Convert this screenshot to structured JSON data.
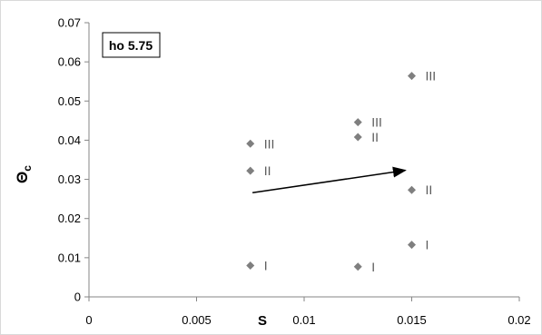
{
  "chart_data": {
    "type": "scatter",
    "title": "",
    "xlabel": "S",
    "ylabel_main": "Θ",
    "ylabel_sub": "c",
    "xlim": [
      0,
      0.02
    ],
    "ylim": [
      0,
      0.07
    ],
    "x_ticks": [
      {
        "value": 0,
        "label": "0"
      },
      {
        "value": 0.005,
        "label": "0.005"
      },
      {
        "value": 0.01,
        "label": "0.01"
      },
      {
        "value": 0.015,
        "label": "0.015"
      },
      {
        "value": 0.02,
        "label": "0.02"
      }
    ],
    "y_ticks": [
      {
        "value": 0,
        "label": "0"
      },
      {
        "value": 0.01,
        "label": "0.01"
      },
      {
        "value": 0.02,
        "label": "0.02"
      },
      {
        "value": 0.03,
        "label": "0.03"
      },
      {
        "value": 0.04,
        "label": "0.04"
      },
      {
        "value": 0.05,
        "label": "0.05"
      },
      {
        "value": 0.06,
        "label": "0.06"
      },
      {
        "value": 0.07,
        "label": "0.07"
      }
    ],
    "grid": false,
    "legend": "none",
    "marker_color": "#7f7f7f",
    "points": [
      {
        "x": 0.0075,
        "y": 0.008,
        "label": "I"
      },
      {
        "x": 0.0075,
        "y": 0.0322,
        "label": "II"
      },
      {
        "x": 0.0075,
        "y": 0.0391,
        "label": "III"
      },
      {
        "x": 0.0125,
        "y": 0.0077,
        "label": "I"
      },
      {
        "x": 0.0125,
        "y": 0.0408,
        "label": "II"
      },
      {
        "x": 0.0125,
        "y": 0.0446,
        "label": "III"
      },
      {
        "x": 0.015,
        "y": 0.0133,
        "label": "I"
      },
      {
        "x": 0.015,
        "y": 0.0273,
        "label": "II"
      },
      {
        "x": 0.015,
        "y": 0.0564,
        "label": "III"
      }
    ],
    "annotations": [
      {
        "type": "text_box",
        "text": "ho 5.75"
      },
      {
        "type": "arrow",
        "from": {
          "x": 0.0076,
          "y": 0.0266
        },
        "to": {
          "x": 0.0147,
          "y": 0.0323
        }
      }
    ]
  }
}
